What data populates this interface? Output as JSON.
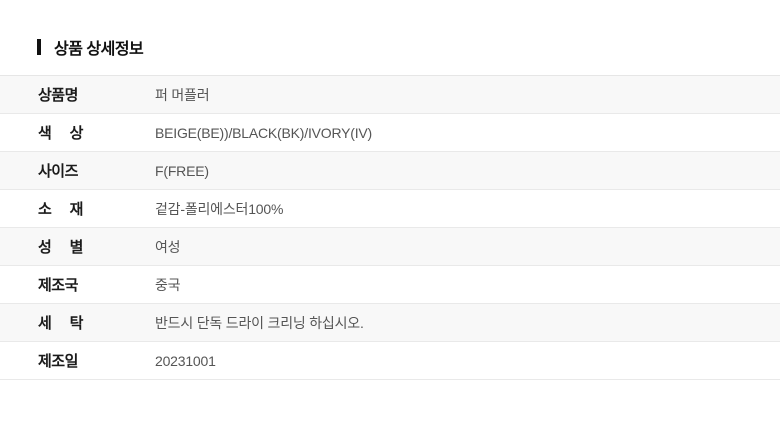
{
  "header": {
    "title": "상품 상세정보"
  },
  "table": {
    "rows": [
      {
        "label": "상품명",
        "value": "퍼 머플러"
      },
      {
        "label": "색 상",
        "value": "BEIGE(BE))/BLACK(BK)/IVORY(IV)"
      },
      {
        "label": "사이즈",
        "value": "F(FREE)"
      },
      {
        "label": "소 재",
        "value": "겉감-폴리에스터100%"
      },
      {
        "label": "성 별",
        "value": "여성"
      },
      {
        "label": "제조국",
        "value": "중국"
      },
      {
        "label": "세 탁",
        "value": "반드시 단독 드라이 크리닝 하십시오."
      },
      {
        "label": "제조일",
        "value": "20231001"
      }
    ]
  },
  "colors": {
    "title_text": "#111111",
    "label_text": "#1b1b1b",
    "value_text": "#555555",
    "row_alt_background": "#f8f8f8",
    "row_background": "#ffffff",
    "divider": "#e9e9e9",
    "marker": "#111111"
  }
}
